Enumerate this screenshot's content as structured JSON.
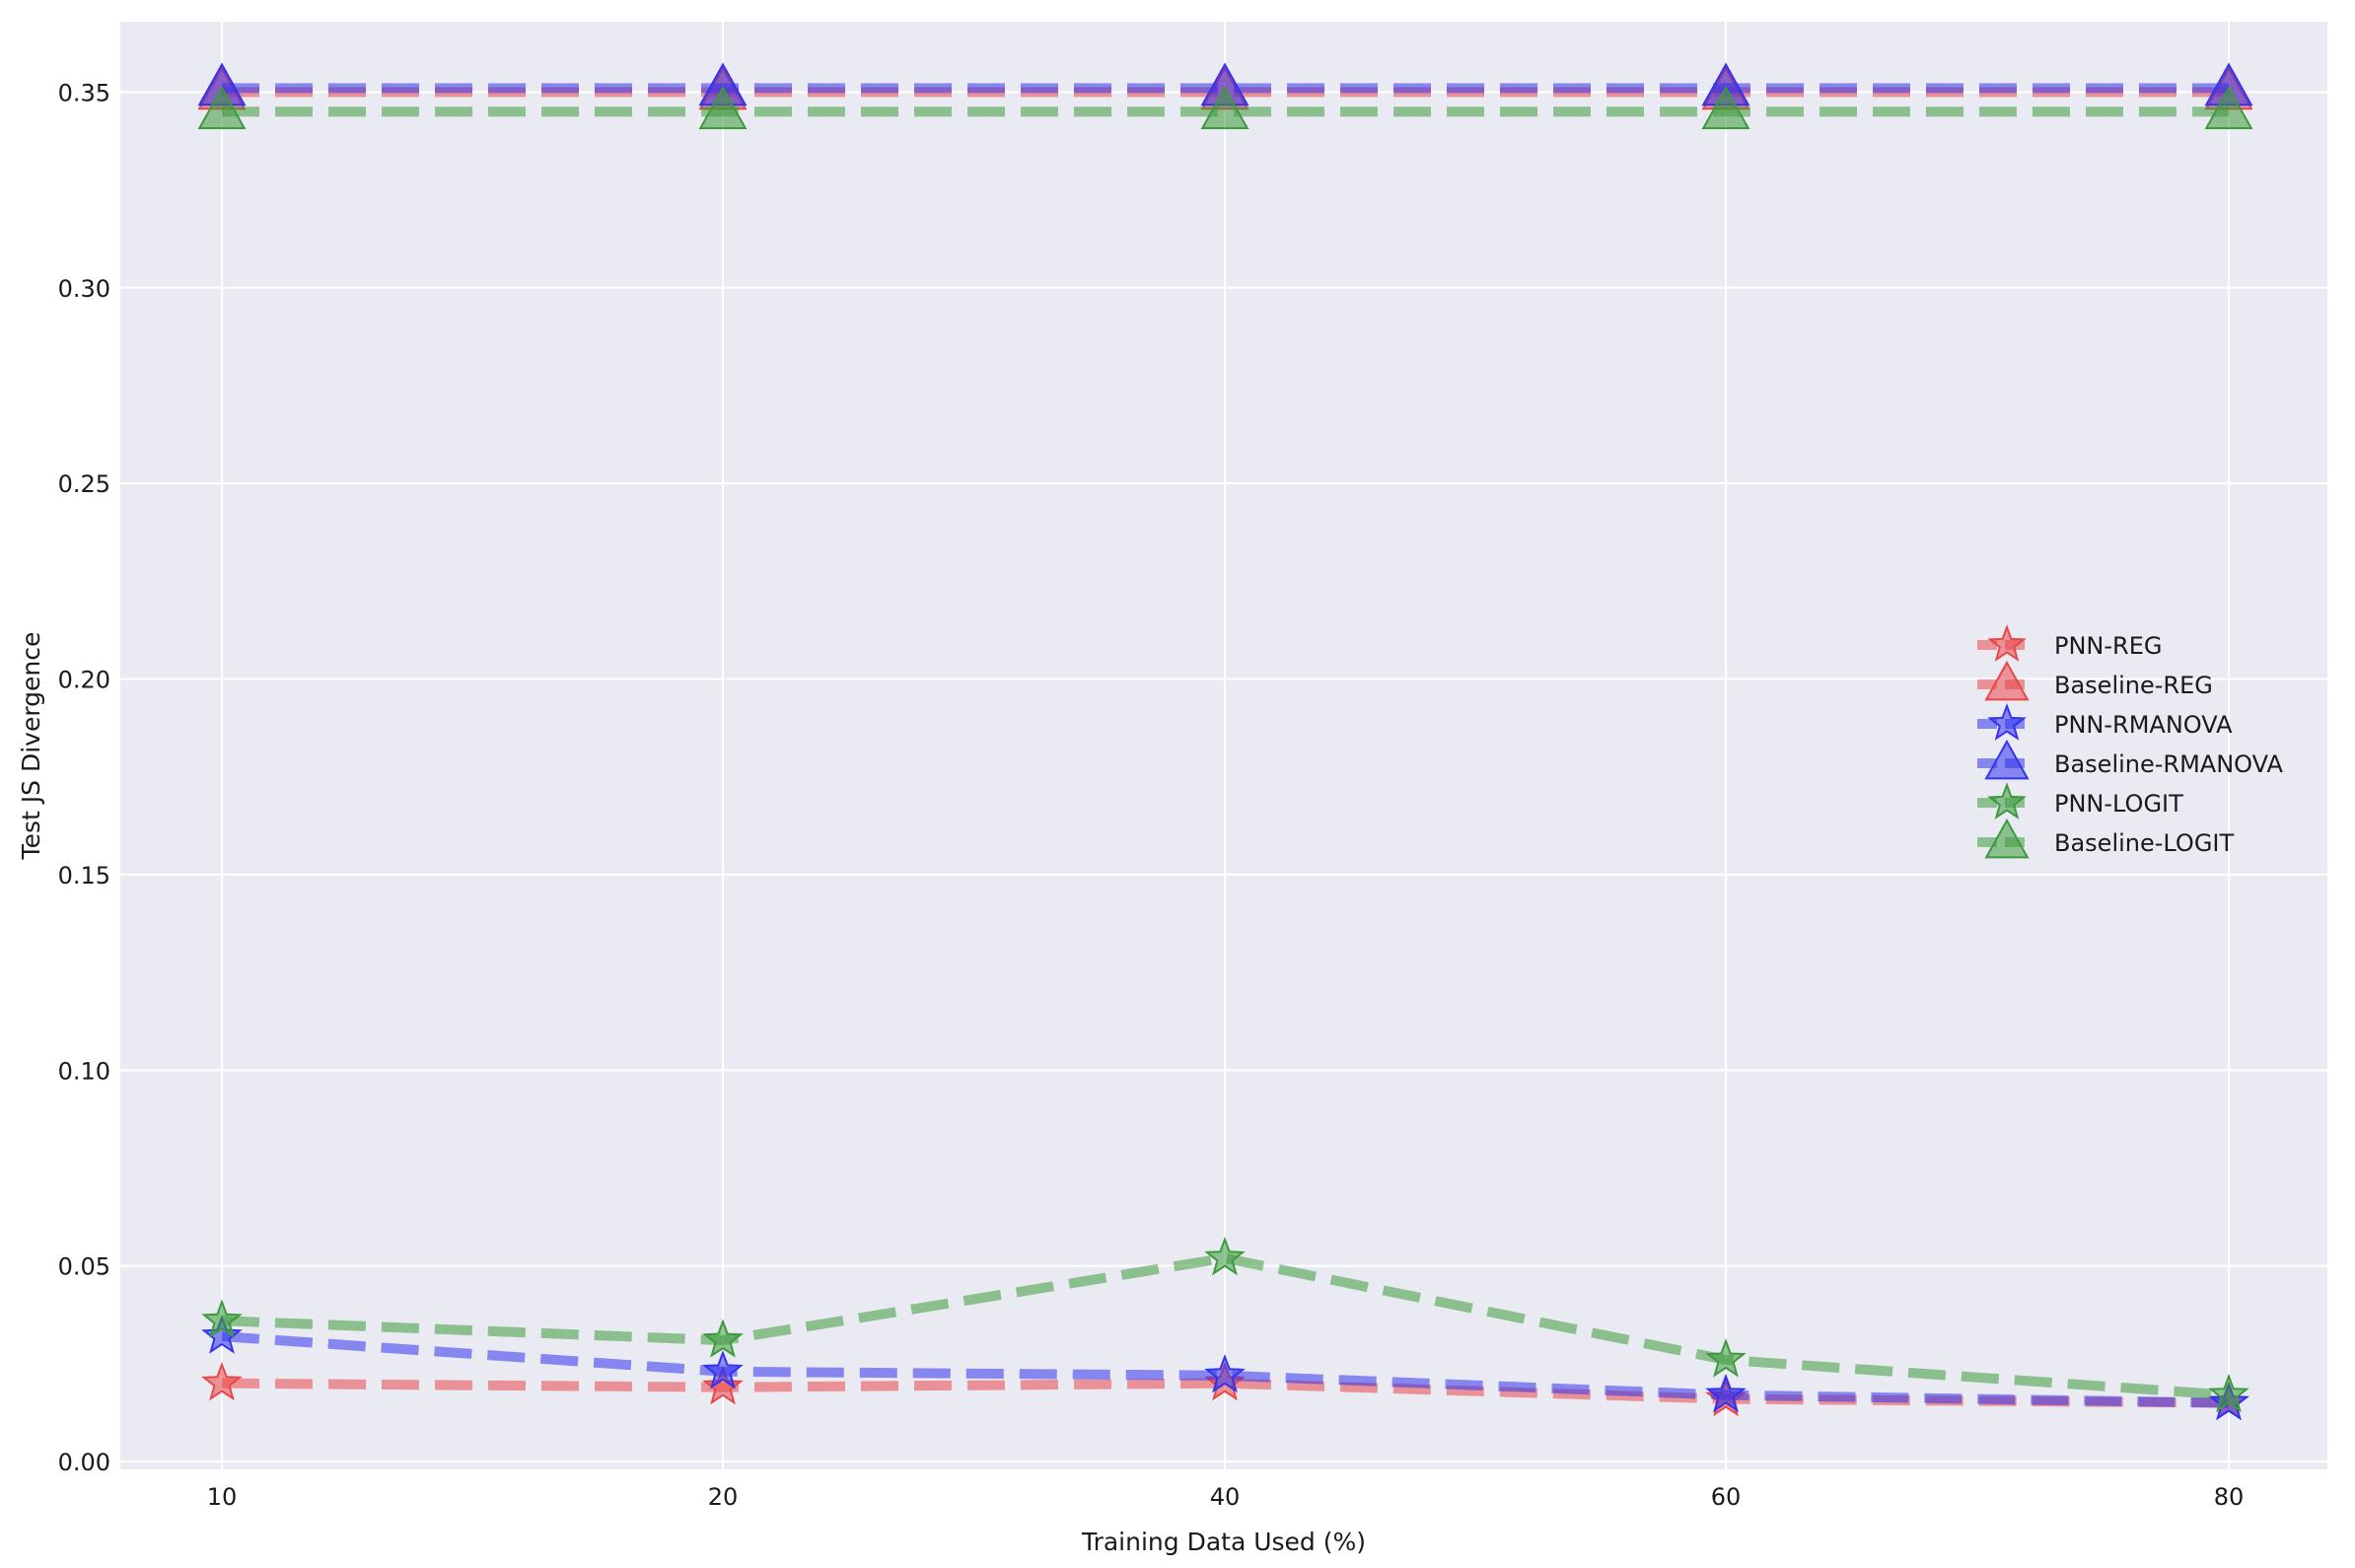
{
  "chart_data": {
    "type": "line",
    "xlabel": "Training Data Used (%)",
    "ylabel": "Test JS Divergence",
    "x": [
      10,
      20,
      40,
      60,
      80
    ],
    "x_ticks": [
      "10",
      "20",
      "40",
      "60",
      "80"
    ],
    "ylim": [
      -0.002,
      0.368
    ],
    "y_ticks": [
      "0.00",
      "0.05",
      "0.10",
      "0.15",
      "0.20",
      "0.25",
      "0.30",
      "0.35"
    ],
    "y_tick_values": [
      0.0,
      0.05,
      0.1,
      0.15,
      0.2,
      0.25,
      0.3,
      0.35
    ],
    "grid": true,
    "legend_position": "center-right",
    "background_color": "#eaeaf2",
    "grid_color": "#ffffff",
    "series": [
      {
        "name": "PNN-REG",
        "color": "#e8474a",
        "marker": "star",
        "values": [
          0.02,
          0.019,
          0.02,
          0.016,
          0.015
        ]
      },
      {
        "name": "Baseline-REG",
        "color": "#e8474a",
        "marker": "triangle",
        "values": [
          0.35,
          0.35,
          0.35,
          0.35,
          0.35
        ]
      },
      {
        "name": "PNN-RMANOVA",
        "color": "#3333ee",
        "marker": "star",
        "values": [
          0.032,
          0.023,
          0.022,
          0.017,
          0.015
        ]
      },
      {
        "name": "Baseline-RMANOVA",
        "color": "#3333ee",
        "marker": "triangle",
        "values": [
          0.351,
          0.351,
          0.351,
          0.351,
          0.351
        ]
      },
      {
        "name": "PNN-LOGIT",
        "color": "#3d9a3d",
        "marker": "star",
        "values": [
          0.036,
          0.031,
          0.052,
          0.026,
          0.017
        ]
      },
      {
        "name": "Baseline-LOGIT",
        "color": "#3d9a3d",
        "marker": "triangle",
        "values": [
          0.345,
          0.345,
          0.345,
          0.345,
          0.345
        ]
      }
    ]
  }
}
